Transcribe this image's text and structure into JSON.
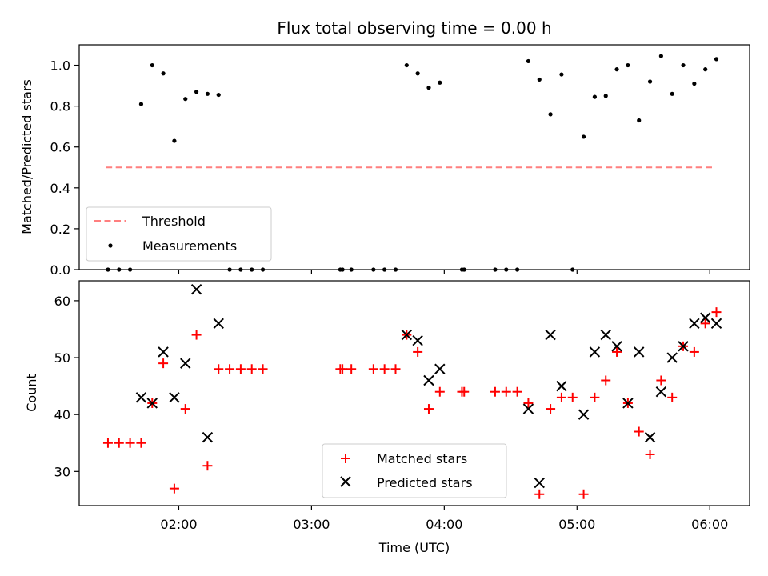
{
  "chart_data": [
    {
      "type": "scatter",
      "title": "Flux total observing time = 0.00 h",
      "xlabel": "",
      "ylabel": "Matched/Predicted stars",
      "ylim": [
        0,
        1.1
      ],
      "yticks": [
        "0.0",
        "0.2",
        "0.4",
        "0.6",
        "0.8",
        "1.0"
      ],
      "grid": false,
      "legend_position": "lower-left",
      "threshold": {
        "name": "Threshold",
        "value": 0.5,
        "x_start": "01:27",
        "x_end": "06:01",
        "color": "#ff7f7f"
      },
      "series": [
        {
          "name": "Measurements",
          "color": "#000000",
          "x": [
            "01:28",
            "01:33",
            "01:38",
            "01:43",
            "01:48",
            "01:53",
            "01:58",
            "02:03",
            "02:08",
            "02:13",
            "02:18",
            "02:23",
            "02:28",
            "02:33",
            "02:38",
            "03:13",
            "03:14",
            "03:18",
            "03:28",
            "03:33",
            "03:38",
            "03:43",
            "03:48",
            "03:53",
            "03:58",
            "04:08",
            "04:09",
            "04:23",
            "04:28",
            "04:33",
            "04:38",
            "04:43",
            "04:48",
            "04:53",
            "04:58",
            "05:03",
            "05:08",
            "05:13",
            "05:18",
            "05:23",
            "05:28",
            "05:33",
            "05:38",
            "05:43",
            "05:48",
            "05:53",
            "05:58",
            "06:03"
          ],
          "y": [
            0.0,
            0.0,
            0.0,
            0.81,
            1.0,
            0.96,
            0.63,
            0.835,
            0.87,
            0.86,
            0.855,
            0.0,
            0.0,
            0.0,
            0.0,
            0.0,
            0.0,
            0.0,
            0.0,
            0.0,
            0.0,
            1.0,
            0.96,
            0.89,
            0.915,
            0.0,
            0.0,
            0.0,
            0.0,
            0.0,
            1.02,
            0.93,
            0.76,
            0.955,
            0.0,
            0.65,
            0.845,
            0.85,
            0.98,
            1.0,
            0.73,
            0.92,
            1.045,
            0.86,
            1.0,
            0.91,
            0.98,
            1.03
          ]
        }
      ]
    },
    {
      "type": "scatter",
      "title": "",
      "xlabel": "Time (UTC)",
      "ylabel": "Count",
      "ylim": [
        24,
        63.5
      ],
      "yticks": [
        "30",
        "40",
        "50",
        "60"
      ],
      "xticks": [
        "02:00",
        "03:00",
        "04:00",
        "05:00",
        "06:00"
      ],
      "xlim": [
        "01:15",
        "06:18"
      ],
      "grid": false,
      "legend_position": "lower-center",
      "series": [
        {
          "name": "Matched stars",
          "marker": "plus",
          "color": "#ff0000",
          "x": [
            "01:28",
            "01:33",
            "01:38",
            "01:43",
            "01:48",
            "01:53",
            "01:58",
            "02:03",
            "02:08",
            "02:13",
            "02:18",
            "02:23",
            "02:28",
            "02:33",
            "02:38",
            "03:13",
            "03:14",
            "03:18",
            "03:28",
            "03:33",
            "03:38",
            "03:43",
            "03:48",
            "03:53",
            "03:58",
            "04:08",
            "04:09",
            "04:23",
            "04:28",
            "04:33",
            "04:38",
            "04:43",
            "04:48",
            "04:53",
            "04:58",
            "05:03",
            "05:08",
            "05:13",
            "05:18",
            "05:23",
            "05:28",
            "05:33",
            "05:38",
            "05:43",
            "05:48",
            "05:53",
            "05:58",
            "06:03"
          ],
          "y": [
            35,
            35,
            35,
            35,
            42,
            49,
            27,
            41,
            54,
            31,
            48,
            48,
            48,
            48,
            48,
            48,
            48,
            48,
            48,
            48,
            48,
            54,
            51,
            41,
            44,
            44,
            44,
            44,
            44,
            44,
            42,
            26,
            41,
            43,
            43,
            26,
            43,
            46,
            51,
            42,
            37,
            33,
            46,
            43,
            52,
            51,
            56,
            58
          ]
        },
        {
          "name": "Predicted stars",
          "marker": "x",
          "color": "#000000",
          "x": [
            "01:43",
            "01:48",
            "01:53",
            "01:58",
            "02:03",
            "02:08",
            "02:13",
            "02:18",
            "03:43",
            "03:48",
            "03:53",
            "03:58",
            "04:38",
            "04:43",
            "04:48",
            "04:53",
            "05:03",
            "05:08",
            "05:13",
            "05:18",
            "05:23",
            "05:28",
            "05:33",
            "05:38",
            "05:43",
            "05:48",
            "05:53",
            "05:58",
            "06:03"
          ],
          "y": [
            43,
            42,
            51,
            43,
            49,
            62,
            36,
            56,
            54,
            53,
            46,
            48,
            41,
            28,
            54,
            45,
            40,
            51,
            54,
            52,
            42,
            51,
            36,
            44,
            50,
            52,
            56,
            57,
            56
          ]
        }
      ]
    }
  ]
}
